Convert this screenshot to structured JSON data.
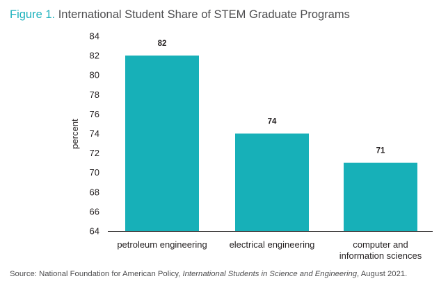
{
  "header": {
    "figure_label": "Figure 1.",
    "title_text": "International Student Share of STEM Graduate Programs"
  },
  "chart_data": {
    "type": "bar",
    "categories": [
      [
        "petroleum engineering"
      ],
      [
        "electrical engineering"
      ],
      [
        "computer and",
        "information sciences"
      ]
    ],
    "values": [
      82,
      74,
      71
    ],
    "data_labels": [
      "82",
      "74",
      "71"
    ],
    "ylabel": "percent",
    "xlabel": "",
    "ylim": [
      64,
      84
    ],
    "yticks": [
      64,
      66,
      68,
      70,
      72,
      74,
      76,
      78,
      80,
      82,
      84
    ],
    "grid": false,
    "bar_color": "#17b0b8",
    "title_accent_color": "#1eb2bd"
  },
  "source": {
    "prefix": "Source: National Foundation for American Policy, ",
    "italic": "International Students in Science and Engineering",
    "suffix": ", August 2021."
  }
}
